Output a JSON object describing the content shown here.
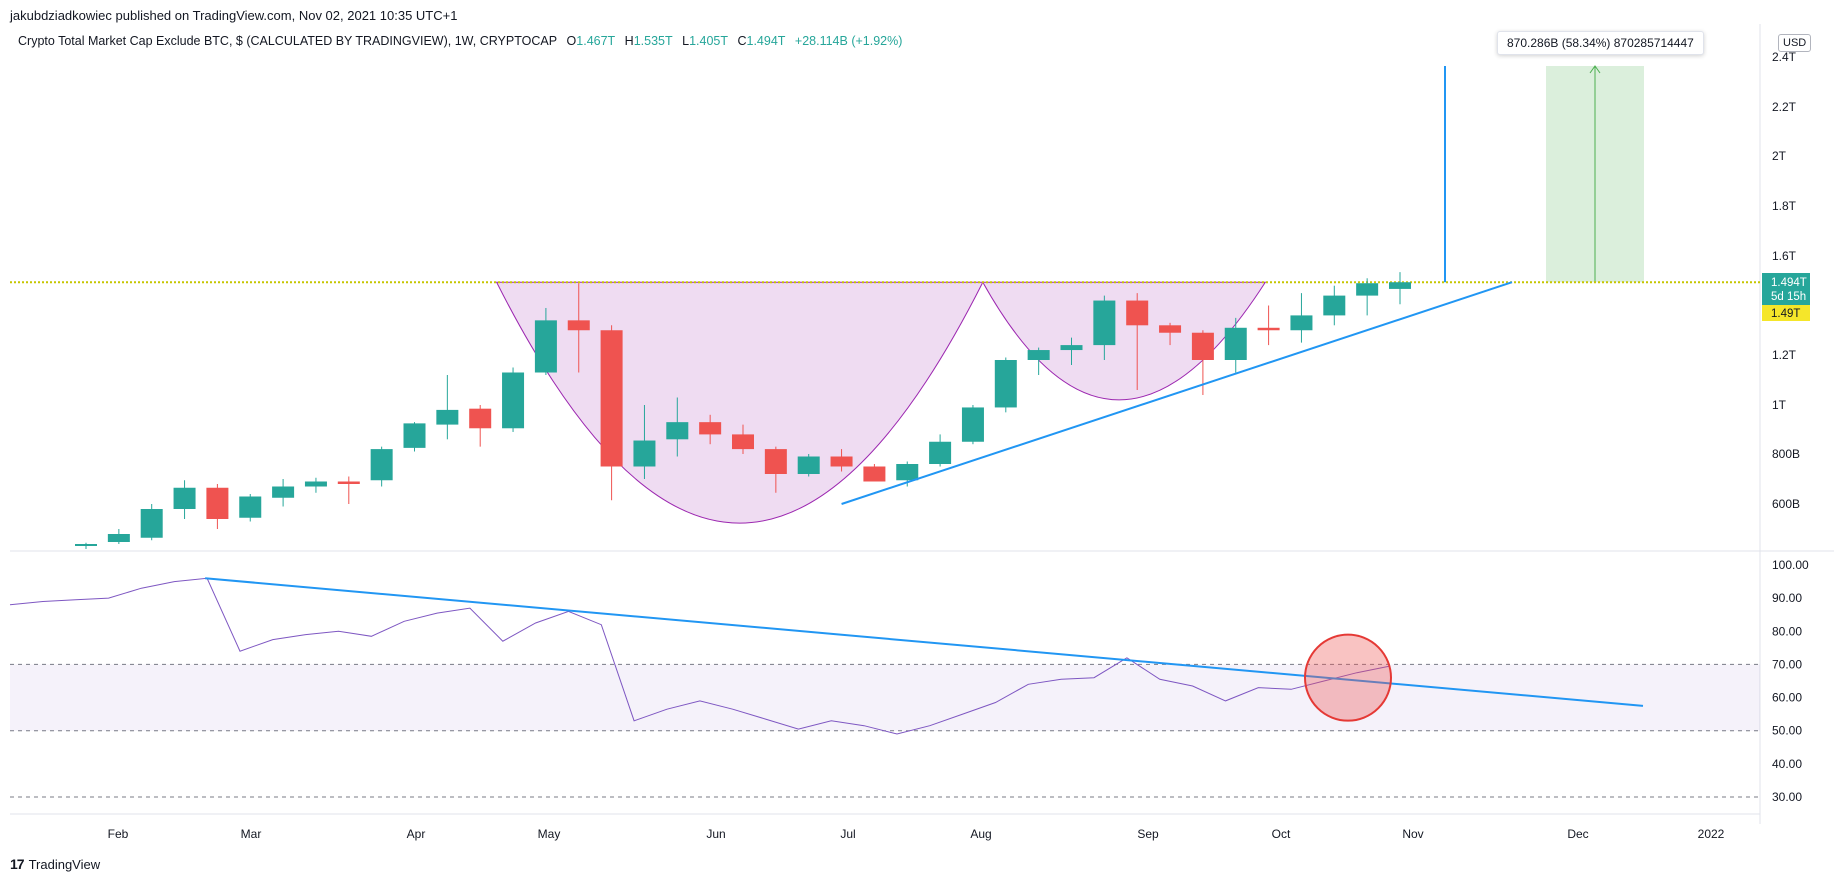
{
  "header": {
    "publisher": "jakubdziadkowiec published on TradingView.com, Nov 02, 2021 10:35 UTC+1"
  },
  "legend": {
    "title": "Crypto Total Market Cap Exclude BTC, $ (CALCULATED BY TRADINGVIEW), 1W, CRYPTOCAP",
    "o_label": "O",
    "o_value": "1.467T",
    "h_label": "H",
    "h_value": "1.535T",
    "l_label": "L",
    "l_value": "1.405T",
    "c_label": "C",
    "c_value": "1.494T",
    "change": "+28.114B (+1.92%)"
  },
  "measure": {
    "text": "870.286B (58.34%) 870285714447"
  },
  "currency": "USD",
  "price_tags": {
    "last_price": "1.494T",
    "countdown": "5d 15h",
    "level": "1.49T"
  },
  "footer": {
    "brand": "TradingView"
  },
  "colors": {
    "up": "#26a69a",
    "down": "#ef5350",
    "cup": "#9c27b0",
    "trendline": "#2196f3",
    "resistance": "#c6c600",
    "rsi_line": "#7e57c2",
    "target_box": "#4caf50",
    "highlight_circle": "#e53935"
  },
  "chart_data": [
    {
      "type": "candlestick",
      "title": "Crypto Total Market Cap Exclude BTC, $ (CALCULATED BY TRADINGVIEW), 1W, CRYPTOCAP",
      "x_ticks": [
        "Feb",
        "Mar",
        "Apr",
        "May",
        "Jun",
        "Jul",
        "Aug",
        "Sep",
        "Oct",
        "Nov",
        "Dec",
        "2022"
      ],
      "y_ticks": [
        "2.4T",
        "2.2T",
        "2T",
        "1.8T",
        "1.6T",
        "1.2T",
        "1T",
        "800B",
        "600B"
      ],
      "y_tick_values": [
        2400,
        2200,
        2000,
        1800,
        1600,
        1200,
        1000,
        800,
        600
      ],
      "unit": "B (USD)",
      "ylim": [
        430,
        2440
      ],
      "candles": [
        {
          "o": 440,
          "h": 445,
          "l": 420,
          "c": 440
        },
        {
          "o": 448,
          "h": 500,
          "l": 440,
          "c": 480
        },
        {
          "o": 465,
          "h": 600,
          "l": 455,
          "c": 580
        },
        {
          "o": 580,
          "h": 695,
          "l": 540,
          "c": 665
        },
        {
          "o": 665,
          "h": 680,
          "l": 500,
          "c": 540
        },
        {
          "o": 545,
          "h": 640,
          "l": 530,
          "c": 630
        },
        {
          "o": 625,
          "h": 700,
          "l": 590,
          "c": 670
        },
        {
          "o": 670,
          "h": 705,
          "l": 645,
          "c": 690
        },
        {
          "o": 690,
          "h": 710,
          "l": 600,
          "c": 680
        },
        {
          "o": 695,
          "h": 830,
          "l": 670,
          "c": 820
        },
        {
          "o": 825,
          "h": 930,
          "l": 810,
          "c": 925
        },
        {
          "o": 920,
          "h": 1120,
          "l": 860,
          "c": 980
        },
        {
          "o": 985,
          "h": 1000,
          "l": 830,
          "c": 905
        },
        {
          "o": 905,
          "h": 1150,
          "l": 890,
          "c": 1130
        },
        {
          "o": 1130,
          "h": 1390,
          "l": 1120,
          "c": 1340
        },
        {
          "o": 1340,
          "h": 1490,
          "l": 1130,
          "c": 1300
        },
        {
          "o": 1300,
          "h": 1320,
          "l": 615,
          "c": 750
        },
        {
          "o": 750,
          "h": 1000,
          "l": 700,
          "c": 855
        },
        {
          "o": 860,
          "h": 1030,
          "l": 790,
          "c": 930
        },
        {
          "o": 930,
          "h": 960,
          "l": 840,
          "c": 880
        },
        {
          "o": 880,
          "h": 920,
          "l": 800,
          "c": 820
        },
        {
          "o": 820,
          "h": 830,
          "l": 645,
          "c": 720
        },
        {
          "o": 720,
          "h": 800,
          "l": 710,
          "c": 790
        },
        {
          "o": 790,
          "h": 820,
          "l": 730,
          "c": 750
        },
        {
          "o": 750,
          "h": 760,
          "l": 690,
          "c": 690
        },
        {
          "o": 695,
          "h": 770,
          "l": 670,
          "c": 760
        },
        {
          "o": 760,
          "h": 880,
          "l": 750,
          "c": 850
        },
        {
          "o": 850,
          "h": 1000,
          "l": 840,
          "c": 990
        },
        {
          "o": 990,
          "h": 1190,
          "l": 970,
          "c": 1180
        },
        {
          "o": 1180,
          "h": 1230,
          "l": 1120,
          "c": 1220
        },
        {
          "o": 1220,
          "h": 1270,
          "l": 1160,
          "c": 1240
        },
        {
          "o": 1240,
          "h": 1440,
          "l": 1180,
          "c": 1420
        },
        {
          "o": 1420,
          "h": 1450,
          "l": 1060,
          "c": 1320
        },
        {
          "o": 1320,
          "h": 1330,
          "l": 1240,
          "c": 1290
        },
        {
          "o": 1290,
          "h": 1300,
          "l": 1040,
          "c": 1180
        },
        {
          "o": 1180,
          "h": 1350,
          "l": 1130,
          "c": 1310
        },
        {
          "o": 1310,
          "h": 1400,
          "l": 1240,
          "c": 1300
        },
        {
          "o": 1300,
          "h": 1450,
          "l": 1250,
          "c": 1360
        },
        {
          "o": 1360,
          "h": 1480,
          "l": 1320,
          "c": 1440
        },
        {
          "o": 1440,
          "h": 1510,
          "l": 1360,
          "c": 1490
        },
        {
          "o": 1467,
          "h": 1535,
          "l": 1405,
          "c": 1494
        }
      ],
      "resistance_level": 1494,
      "target_level": 2364
    },
    {
      "type": "line",
      "title": "RSI",
      "y_ticks": [
        "100.00",
        "90.00",
        "80.00",
        "70.00",
        "60.00",
        "50.00",
        "40.00",
        "30.00"
      ],
      "y_tick_values": [
        100,
        90,
        80,
        70,
        60,
        50,
        40,
        30
      ],
      "ylim": [
        27,
        101
      ],
      "band": [
        50,
        70
      ],
      "dashed_levels": [
        70,
        50,
        30
      ],
      "values": [
        88,
        89,
        89.5,
        90,
        93,
        95,
        96,
        74,
        77.5,
        79,
        80,
        78.5,
        83,
        85.5,
        87,
        77,
        82.5,
        86,
        82,
        53,
        56.5,
        59,
        56.5,
        53.5,
        50.5,
        53,
        51.5,
        49,
        51.5,
        55,
        58.5,
        64,
        65.5,
        66,
        72,
        65.5,
        63.5,
        59,
        63,
        62.5,
        65,
        67.5,
        69.5
      ]
    }
  ]
}
